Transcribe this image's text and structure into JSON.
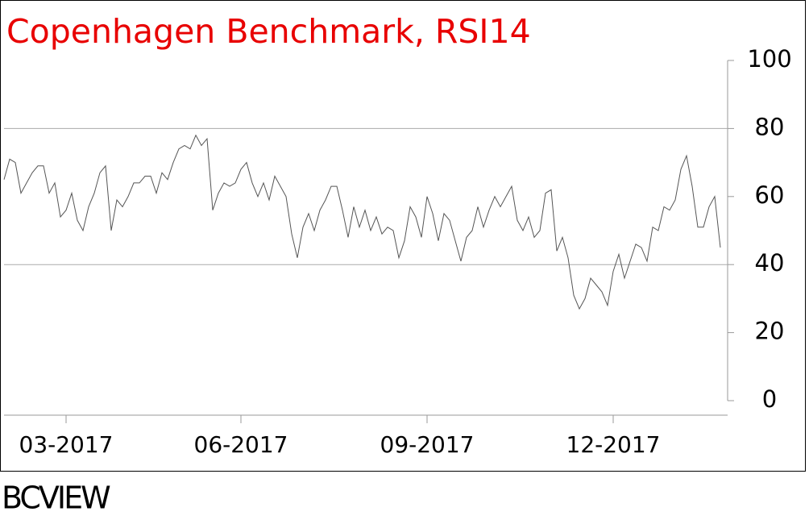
{
  "chart_data": {
    "type": "line",
    "title": "Copenhagen Benchmark, RSI14",
    "title_color": "#e80000",
    "source": "BCVIEW",
    "categories": [
      null,
      null,
      null,
      null,
      null,
      null,
      null,
      null,
      null,
      null,
      null,
      "03-2017",
      null,
      null,
      null,
      null,
      null,
      null,
      null,
      null,
      null,
      null,
      null,
      null,
      null,
      null,
      null,
      null,
      null,
      null,
      null,
      null,
      null,
      null,
      null,
      null,
      null,
      null,
      null,
      null,
      null,
      null,
      "06-2017",
      null,
      null,
      null,
      null,
      null,
      null,
      null,
      null,
      null,
      null,
      null,
      null,
      null,
      null,
      null,
      null,
      null,
      null,
      null,
      null,
      null,
      null,
      null,
      null,
      null,
      null,
      null,
      null,
      null,
      null,
      null,
      null,
      "09-2017",
      null,
      null,
      null,
      null,
      null,
      null,
      null,
      null,
      null,
      null,
      null,
      null,
      null,
      null,
      null,
      null,
      null,
      null,
      null,
      null,
      null,
      null,
      null,
      null,
      null,
      null,
      null,
      null,
      null,
      null,
      null,
      null,
      "12-2017",
      null,
      null,
      null,
      null,
      null,
      null,
      null,
      null,
      null,
      null,
      null,
      null,
      null,
      null,
      null,
      null,
      null,
      null,
      null
    ],
    "series": [
      {
        "name": "RSI14",
        "color": "#555555",
        "values": [
          65,
          71,
          70,
          61,
          64,
          67,
          69,
          69,
          61,
          64,
          54,
          56,
          61,
          53,
          50,
          57,
          61,
          67,
          69,
          50,
          59,
          57,
          60,
          64,
          64,
          66,
          66,
          61,
          67,
          65,
          70,
          74,
          75,
          74,
          78,
          75,
          77,
          56,
          61,
          64,
          63,
          64,
          68,
          70,
          64,
          60,
          64,
          59,
          66,
          63,
          60,
          49,
          42,
          51,
          55,
          50,
          56,
          59,
          63,
          63,
          56,
          48,
          57,
          51,
          56,
          50,
          54,
          49,
          51,
          50,
          42,
          47,
          57,
          54,
          48,
          60,
          55,
          47,
          55,
          53,
          47,
          41,
          48,
          50,
          57,
          51,
          56,
          60,
          57,
          60,
          63,
          53,
          50,
          54,
          48,
          50,
          61,
          62,
          44,
          48,
          42,
          31,
          27,
          30,
          36,
          34,
          32,
          28,
          38,
          43,
          36,
          41,
          46,
          45,
          41,
          51,
          50,
          57,
          56,
          59,
          68,
          72,
          63,
          51,
          51,
          57,
          60,
          45
        ]
      }
    ],
    "ylim": [
      0,
      100
    ],
    "yticks": [
      0,
      20,
      40,
      60,
      80,
      100
    ],
    "reference_lines": [
      40,
      80
    ]
  }
}
